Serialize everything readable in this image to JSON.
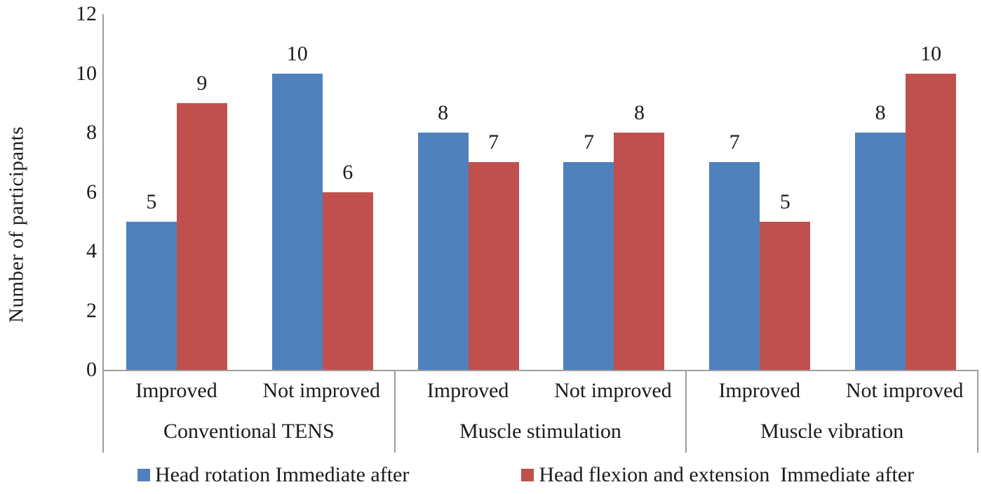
{
  "chart_data": {
    "type": "bar",
    "ylabel": "Number of participants",
    "ylim": [
      0,
      12
    ],
    "yticks": [
      0,
      2,
      4,
      6,
      8,
      10,
      12
    ],
    "grid": false,
    "legend_position": "bottom",
    "colors": {
      "series1": "#4F81BD",
      "series2": "#C0504D",
      "axis": "#9d9d9d",
      "text": "#1b1b1b"
    },
    "series": [
      {
        "name": "Head rotation Immediate after",
        "color": "#4F81BD"
      },
      {
        "name": "Head flexion and extension  Immediate after",
        "color": "#C0504D"
      }
    ],
    "groups": [
      {
        "label": "Conventional TENS",
        "categories": [
          "Improved",
          "Not improved"
        ],
        "values": [
          [
            5,
            9
          ],
          [
            10,
            6
          ]
        ]
      },
      {
        "label": "Muscle stimulation",
        "categories": [
          "Improved",
          "Not improved"
        ],
        "values": [
          [
            8,
            7
          ],
          [
            7,
            8
          ]
        ]
      },
      {
        "label": "Muscle vibration",
        "categories": [
          "Improved",
          "Not improved"
        ],
        "values": [
          [
            7,
            5
          ],
          [
            8,
            10
          ]
        ]
      }
    ]
  }
}
